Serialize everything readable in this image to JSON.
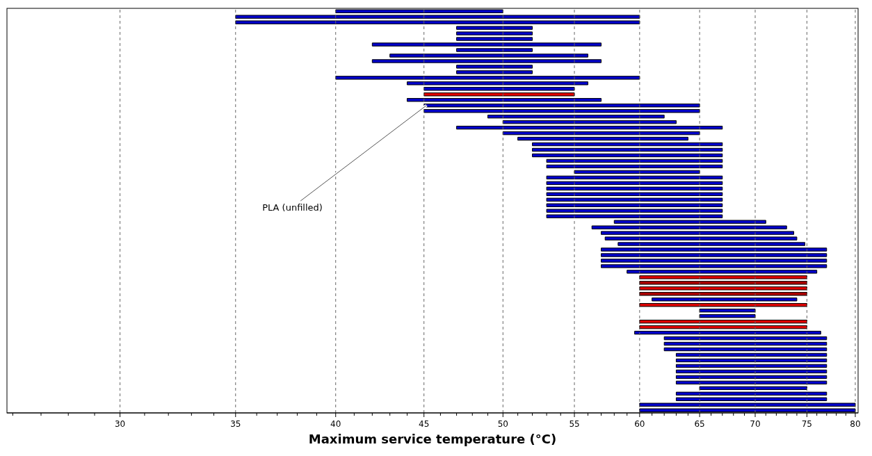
{
  "chart_data": {
    "type": "bar",
    "orientation": "horizontal",
    "xlabel": "Maximum service temperature (°C)",
    "categories": [
      null,
      null,
      null,
      null,
      null,
      null,
      null,
      null,
      null,
      null,
      null,
      null,
      null,
      null,
      null,
      null,
      null,
      null,
      null,
      null,
      null,
      null,
      null,
      null,
      null,
      null,
      null,
      null,
      null,
      null,
      null,
      null,
      null,
      null,
      null,
      null,
      null,
      null,
      null,
      null,
      null,
      null,
      null,
      null,
      null,
      null,
      null,
      null,
      null,
      null,
      null,
      null,
      null,
      null,
      null,
      null,
      null,
      null,
      null,
      null,
      null,
      null,
      null,
      null,
      null,
      null,
      null,
      null,
      null,
      null,
      null,
      null,
      null
    ],
    "base": [
      40,
      35,
      35,
      47,
      47,
      47,
      42,
      47,
      43,
      42,
      47,
      47,
      40,
      44,
      45,
      45,
      44,
      45,
      45,
      49,
      50,
      47,
      50,
      51,
      52,
      52,
      52,
      53,
      53,
      55,
      53,
      53,
      53,
      53,
      53,
      53,
      53,
      53,
      58,
      56.3,
      57,
      57.3,
      58.3,
      57,
      57,
      57,
      57,
      59,
      60,
      60,
      60,
      60,
      61,
      60,
      65,
      65,
      60,
      60,
      59.6,
      62,
      62,
      62,
      63,
      63,
      63,
      63,
      63,
      63,
      65,
      63,
      63,
      60,
      60
    ],
    "values": [
      10,
      25,
      25,
      5,
      5,
      5,
      15,
      5,
      13,
      15,
      5,
      5,
      20,
      12,
      10,
      10,
      13,
      20,
      20,
      13,
      13,
      20,
      15,
      13,
      15,
      15,
      15,
      14,
      14,
      10,
      14,
      14,
      14,
      14,
      14,
      14,
      14,
      14,
      13,
      16.7,
      16.7,
      16.7,
      16.5,
      20,
      20,
      20,
      20,
      17,
      15,
      15,
      15,
      15,
      13,
      15,
      5,
      5,
      15,
      15,
      16.8,
      15,
      15,
      15,
      14,
      14,
      14,
      14,
      14,
      14,
      10,
      14,
      14,
      20,
      20
    ],
    "colors": [
      "#0000cc",
      "#0000cc",
      "#0000cc",
      "#0000cc",
      "#0000cc",
      "#0000cc",
      "#0000cc",
      "#0000cc",
      "#0000cc",
      "#0000cc",
      "#0000cc",
      "#0000cc",
      "#0000cc",
      "#0000cc",
      "#0000cc",
      "#e00000",
      "#0000cc",
      "#0000cc",
      "#0000cc",
      "#0000cc",
      "#0000cc",
      "#0000cc",
      "#0000cc",
      "#0000cc",
      "#0000cc",
      "#0000cc",
      "#0000cc",
      "#0000cc",
      "#0000cc",
      "#0000cc",
      "#0000cc",
      "#0000cc",
      "#0000cc",
      "#0000cc",
      "#0000cc",
      "#0000cc",
      "#0000cc",
      "#0000cc",
      "#0000cc",
      "#0000cc",
      "#0000cc",
      "#0000cc",
      "#0000cc",
      "#0000cc",
      "#0000cc",
      "#0000cc",
      "#0000cc",
      "#0000cc",
      "#e00000",
      "#b00000",
      "#e00000",
      "#b00000",
      "#0000cc",
      "#e00000",
      "#0000cc",
      "#0000cc",
      "#e00000",
      "#e00000",
      "#0000cc",
      "#0000cc",
      "#0000cc",
      "#0000cc",
      "#0000cc",
      "#0000cc",
      "#0000cc",
      "#0000cc",
      "#0000cc",
      "#0000cc",
      "#0000cc",
      "#0000cc",
      "#0000cc",
      "#0000cc",
      "#0000cc"
    ],
    "log": "x",
    "xlim": [
      25.8,
      80.3
    ],
    "xticks": [
      {
        "value": 26,
        "label": null
      },
      {
        "value": 27,
        "label": null
      },
      {
        "value": 28,
        "label": null
      },
      {
        "value": 29,
        "label": null
      },
      30,
      {
        "value": 31,
        "label": null
      },
      {
        "value": 32,
        "label": null
      },
      {
        "value": 33,
        "label": null
      },
      {
        "value": 34,
        "label": null
      },
      35,
      {
        "value": 36,
        "label": null
      },
      {
        "value": 37,
        "label": null
      },
      {
        "value": 38,
        "label": null
      },
      {
        "value": 39,
        "label": null
      },
      40,
      {
        "value": 41,
        "label": null
      },
      {
        "value": 42,
        "label": null
      },
      {
        "value": 43,
        "label": null
      },
      {
        "value": 44,
        "label": null
      },
      45,
      {
        "value": 46,
        "label": null
      },
      {
        "value": 47,
        "label": null
      },
      {
        "value": 48,
        "label": null
      },
      {
        "value": 49,
        "label": null
      },
      50,
      {
        "value": 51,
        "label": null
      },
      {
        "value": 52,
        "label": null
      },
      {
        "value": 53,
        "label": null
      },
      {
        "value": 54,
        "label": null
      },
      55,
      {
        "value": 56,
        "label": null
      },
      {
        "value": 57,
        "label": null
      },
      {
        "value": 58,
        "label": null
      },
      {
        "value": 59,
        "label": null
      },
      60,
      {
        "value": 61,
        "label": null
      },
      {
        "value": 62,
        "label": null
      },
      {
        "value": 63,
        "label": null
      },
      {
        "value": 64,
        "label": null
      },
      65,
      {
        "value": 66,
        "label": null
      },
      {
        "value": 67,
        "label": null
      },
      {
        "value": 68,
        "label": null
      },
      {
        "value": 69,
        "label": null
      },
      70,
      {
        "value": 71,
        "label": null
      },
      {
        "value": 72,
        "label": null
      },
      {
        "value": 73,
        "label": null
      },
      {
        "value": 74,
        "label": null
      },
      75,
      {
        "value": 76,
        "label": null
      },
      {
        "value": 77,
        "label": null
      },
      {
        "value": 78,
        "label": null
      },
      {
        "value": 79,
        "label": null
      },
      80
    ],
    "grid": "x",
    "tick_labels": "x",
    "annotations": [
      "PLA (unfilled)"
    ]
  }
}
